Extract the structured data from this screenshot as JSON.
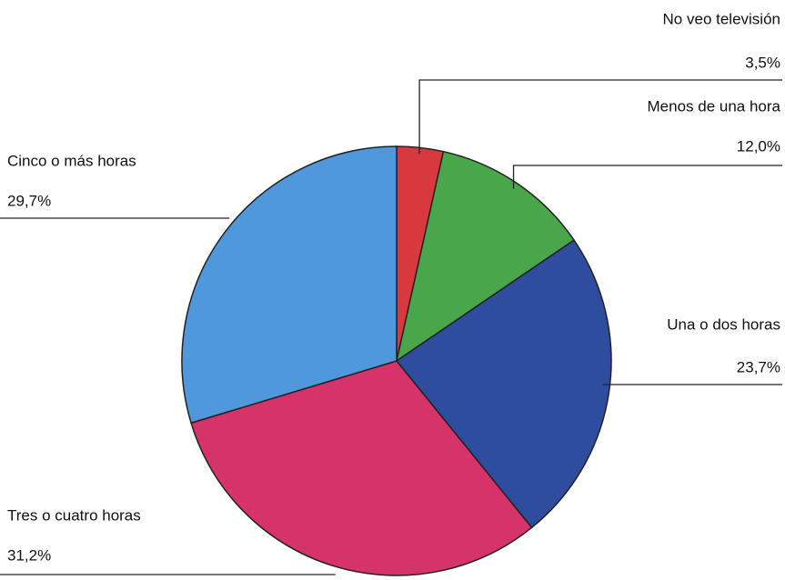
{
  "chart_data": {
    "type": "pie",
    "categories": [
      "No veo televisión",
      "Menos de una hora",
      "Una o dos horas",
      "Tres o cuatro horas",
      "Cinco o más horas"
    ],
    "values": [
      3.5,
      12.0,
      23.7,
      31.2,
      29.7
    ],
    "value_labels": [
      "3,5%",
      "12,0%",
      "23,7%",
      "31,2%",
      "29,7%"
    ],
    "colors": [
      "#d8393f",
      "#4aa64a",
      "#2e4d9f",
      "#d6336b",
      "#4f98dc"
    ]
  }
}
